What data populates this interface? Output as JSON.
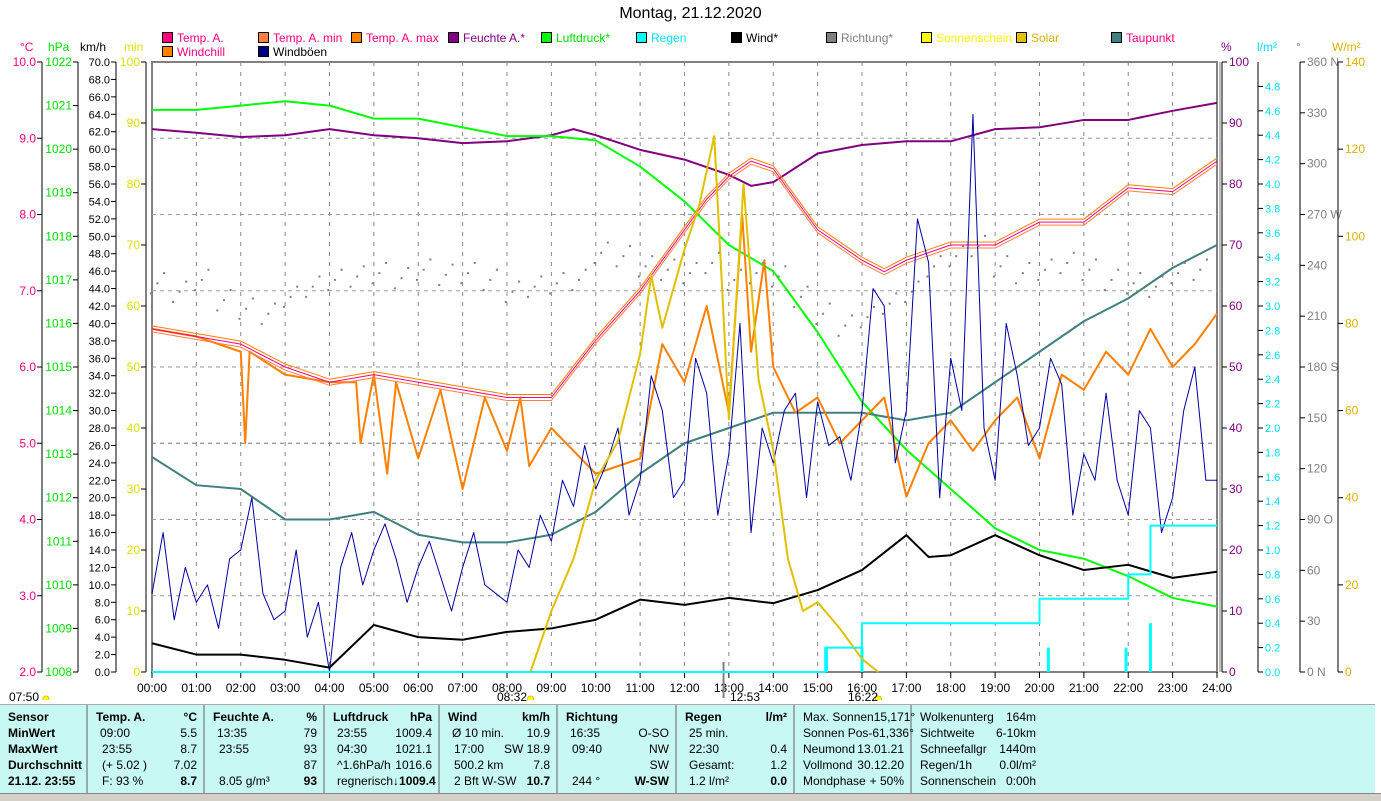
{
  "title": "Montag, 21.12.2020",
  "legend": [
    {
      "label": "Temp. A.",
      "color": "#ff0080",
      "text": "#ff0080"
    },
    {
      "label": "Temp. A. min",
      "color": "#ff8040",
      "text": "#ff0080"
    },
    {
      "label": "Temp. A. max",
      "color": "#ff8000",
      "text": "#ff0080"
    },
    {
      "label": "Feuchte A.*",
      "color": "#800080",
      "text": "#800080"
    },
    {
      "label": "Luftdruck*",
      "color": "#00ff00",
      "text": "#00e000"
    },
    {
      "label": "Regen",
      "color": "#00ffff",
      "text": "#00e0ff"
    },
    {
      "label": "Wind*",
      "color": "#000000",
      "text": "#000000"
    },
    {
      "label": "Richtung*",
      "color": "#808080",
      "text": "#808080"
    },
    {
      "label": "Sonnenschein",
      "color": "#ffff00",
      "text": "#ffff00"
    },
    {
      "label": "Solar",
      "color": "#e0c000",
      "text": "#e0b000"
    },
    {
      "label": "Taupunkt",
      "color": "#408080",
      "text": "#ff0080"
    },
    {
      "label": "Windchill",
      "color": "#ff8000",
      "text": "#ff0080"
    },
    {
      "label": "Windböen",
      "color": "#000080",
      "text": "#000000"
    }
  ],
  "units": {
    "c": "°C",
    "hpa": "hPa",
    "kmh": "km/h",
    "min": "min",
    "pct": "%",
    "lm2": "l/m²",
    "deg": "°",
    "wm2": "W/m²"
  },
  "time_marks": {
    "sunrise": "07:50",
    "sun_up": "08:32",
    "noon": "12:53",
    "sun_down": "16:22"
  },
  "chart_data": {
    "type": "line",
    "title": "Montag, 21.12.2020",
    "xlabel": "",
    "x_range": [
      0,
      24
    ],
    "x_ticks": [
      "00:00",
      "01:00",
      "02:00",
      "03:00",
      "04:00",
      "05:00",
      "06:00",
      "07:00",
      "08:00",
      "09:00",
      "10:00",
      "11:00",
      "12:00",
      "13:00",
      "14:00",
      "15:00",
      "16:00",
      "17:00",
      "18:00",
      "19:00",
      "20:00",
      "21:00",
      "22:00",
      "23:00",
      "24:00"
    ],
    "grid": true,
    "axes": {
      "c": {
        "range": [
          2,
          10
        ],
        "step": 1,
        "decimals": 1,
        "color": "#ff0080"
      },
      "hpa": {
        "range": [
          1008,
          1022
        ],
        "step": 1,
        "decimals": 0,
        "color": "#00e000"
      },
      "kmh": {
        "range": [
          0,
          70
        ],
        "step": 2,
        "decimals": 1,
        "color": "#000000"
      },
      "min": {
        "range": [
          0,
          100
        ],
        "step": 10,
        "decimals": 0,
        "color": "#e0e000"
      },
      "pct": {
        "range": [
          0,
          100
        ],
        "step": 10,
        "decimals": 0,
        "color": "#800080"
      },
      "lm2": {
        "range": [
          0,
          5
        ],
        "step": 0.2,
        "decimals": 1,
        "color": "#00e0ff",
        "max_label": 4.8
      },
      "deg": {
        "range": [
          0,
          360
        ],
        "step": 30,
        "decimals": 0,
        "color": "#808080",
        "compass": {
          "0": "N",
          "90": "O",
          "180": "S",
          "270": "W",
          "360": "N"
        }
      },
      "wm2": {
        "range": [
          0,
          140
        ],
        "step": 20,
        "decimals": 0,
        "color": "#e0b000"
      }
    },
    "series": [
      {
        "name": "Feuchte A.",
        "axis": "pct",
        "color": "#800080",
        "width": 2,
        "x": [
          0,
          1,
          2,
          3,
          4,
          5,
          6,
          7,
          8,
          9,
          9.5,
          10,
          11,
          12,
          13,
          13.5,
          14,
          15,
          16,
          17,
          18,
          19,
          20,
          21,
          22,
          23,
          24
        ],
        "y": [
          89,
          88.4,
          87.7,
          88,
          89,
          88,
          87.5,
          86.7,
          87,
          88,
          89,
          88,
          85.6,
          84,
          81.5,
          79.7,
          80.3,
          85,
          86.4,
          87,
          87,
          89,
          89.3,
          90.5,
          90.5,
          92,
          93.3
        ]
      },
      {
        "name": "Luftdruck",
        "axis": "hpa",
        "color": "#00ff00",
        "width": 2,
        "x": [
          0,
          1,
          2,
          3,
          4,
          5,
          6,
          7,
          8,
          9,
          10,
          11,
          12,
          13,
          14,
          15,
          16,
          17,
          18,
          19,
          20,
          21,
          22,
          23,
          24
        ],
        "y": [
          1020.9,
          1020.9,
          1021,
          1021.1,
          1021,
          1020.7,
          1020.7,
          1020.5,
          1020.3,
          1020.3,
          1020.2,
          1019.6,
          1018.8,
          1017.8,
          1017.2,
          1015.8,
          1014.2,
          1013.1,
          1012.2,
          1011.3,
          1010.8,
          1010.6,
          1010.2,
          1009.7,
          1009.5
        ]
      },
      {
        "name": "Taupunkt",
        "axis": "c",
        "color": "#408080",
        "width": 2,
        "x": [
          0,
          1,
          2,
          3,
          4,
          5,
          6,
          7,
          8,
          9,
          10,
          11,
          12,
          13,
          14,
          15,
          16,
          17,
          18,
          19,
          20,
          21,
          22,
          23,
          24
        ],
        "y": [
          4.82,
          4.45,
          4.4,
          4.0,
          4.0,
          4.1,
          3.8,
          3.7,
          3.7,
          3.8,
          4.1,
          4.6,
          5.0,
          5.2,
          5.4,
          5.4,
          5.4,
          5.3,
          5.4,
          5.8,
          6.2,
          6.6,
          6.9,
          7.3,
          7.6
        ]
      },
      {
        "name": "Windchill",
        "axis": "c",
        "color": "#ff8000",
        "width": 2,
        "x": [
          0,
          1,
          2,
          2.1,
          2.2,
          3,
          4,
          4.6,
          4.7,
          5,
          5.3,
          5.5,
          6,
          6.5,
          7,
          7.5,
          8,
          8.3,
          8.5,
          9,
          9.5,
          10,
          10.5,
          11,
          11.5,
          12,
          12.5,
          13,
          13.3,
          13.5,
          13.8,
          14,
          14.5,
          15,
          15.5,
          16,
          16.5,
          17,
          17.5,
          18,
          18.5,
          19,
          19.5,
          20,
          20.5,
          21,
          21.5,
          22,
          22.5,
          23,
          23.5,
          24
        ],
        "y": [
          6.5,
          6.4,
          6.2,
          5.0,
          6.2,
          5.9,
          5.8,
          5.8,
          5.0,
          5.9,
          4.6,
          5.8,
          4.8,
          5.7,
          4.4,
          5.6,
          4.9,
          5.6,
          4.7,
          5.2,
          4.9,
          4.6,
          4.7,
          4.8,
          6.3,
          5.8,
          6.8,
          5.4,
          8.0,
          6.2,
          7.4,
          6.0,
          5.4,
          5.6,
          5.0,
          5.3,
          5.6,
          4.3,
          5.0,
          5.3,
          4.9,
          5.3,
          5.6,
          4.8,
          5.9,
          5.7,
          6.2,
          5.9,
          6.5,
          6.0,
          6.3,
          6.7
        ]
      },
      {
        "name": "Temp. A. min",
        "axis": "c",
        "color": "#ff8040",
        "width": 1,
        "offset": -0.04,
        "x": [
          0,
          1,
          2,
          3,
          4,
          5,
          6,
          7,
          8,
          9,
          10,
          11,
          12,
          12.5,
          13,
          13.5,
          14,
          15,
          16,
          16.5,
          17,
          18,
          19,
          20,
          21,
          22,
          23,
          24
        ],
        "y": [
          6.5,
          6.4,
          6.3,
          6.0,
          5.8,
          5.9,
          5.8,
          5.7,
          5.6,
          5.6,
          6.35,
          7.0,
          7.8,
          8.2,
          8.5,
          8.7,
          8.6,
          7.8,
          7.4,
          7.25,
          7.4,
          7.6,
          7.6,
          7.9,
          7.9,
          8.35,
          8.3,
          8.7
        ]
      },
      {
        "name": "Temp. A. max",
        "axis": "c",
        "color": "#ff8000",
        "width": 1,
        "offset": 0.04,
        "x": [
          0,
          1,
          2,
          3,
          4,
          5,
          6,
          7,
          8,
          9,
          10,
          11,
          12,
          12.5,
          13,
          13.5,
          14,
          15,
          16,
          16.5,
          17,
          18,
          19,
          20,
          21,
          22,
          23,
          24
        ],
        "y": [
          6.5,
          6.4,
          6.3,
          6.0,
          5.8,
          5.9,
          5.8,
          5.7,
          5.6,
          5.6,
          6.35,
          7.0,
          7.8,
          8.2,
          8.5,
          8.7,
          8.6,
          7.8,
          7.4,
          7.25,
          7.4,
          7.6,
          7.6,
          7.9,
          7.9,
          8.35,
          8.3,
          8.7
        ]
      },
      {
        "name": "Temp. A.",
        "axis": "c",
        "color": "#ff0080",
        "width": 1,
        "x": [
          0,
          1,
          2,
          3,
          4,
          5,
          6,
          7,
          8,
          9,
          10,
          11,
          12,
          12.5,
          13,
          13.5,
          14,
          15,
          16,
          16.5,
          17,
          18,
          19,
          20,
          21,
          22,
          23,
          24
        ],
        "y": [
          6.5,
          6.4,
          6.3,
          6.0,
          5.8,
          5.9,
          5.8,
          5.7,
          5.6,
          5.6,
          6.35,
          7.0,
          7.8,
          8.2,
          8.5,
          8.7,
          8.6,
          7.8,
          7.4,
          7.25,
          7.4,
          7.6,
          7.6,
          7.9,
          7.9,
          8.35,
          8.3,
          8.7
        ]
      },
      {
        "name": "Windböen",
        "axis": "kmh",
        "color": "#0000a0",
        "width": 1,
        "x": [
          0,
          0.25,
          0.5,
          0.75,
          1,
          1.25,
          1.5,
          1.75,
          2,
          2.25,
          2.5,
          2.75,
          3,
          3.25,
          3.5,
          3.75,
          4,
          4.25,
          4.5,
          4.75,
          5,
          5.25,
          5.5,
          5.75,
          6,
          6.25,
          6.5,
          6.75,
          7,
          7.25,
          7.5,
          7.75,
          8,
          8.25,
          8.5,
          8.75,
          9,
          9.25,
          9.5,
          9.75,
          10,
          10.25,
          10.5,
          10.75,
          11,
          11.25,
          11.5,
          11.75,
          12,
          12.25,
          12.5,
          12.75,
          13,
          13.25,
          13.5,
          13.75,
          14,
          14.25,
          14.5,
          14.75,
          15,
          15.25,
          15.5,
          15.75,
          16,
          16.25,
          16.5,
          16.75,
          17,
          17.25,
          17.5,
          17.75,
          18,
          18.25,
          18.5,
          18.75,
          19,
          19.25,
          19.5,
          19.75,
          20,
          20.25,
          20.5,
          20.75,
          21,
          21.25,
          21.5,
          21.75,
          22,
          22.25,
          22.5,
          22.75,
          23,
          23.25,
          23.5,
          23.75,
          24
        ],
        "y": [
          9,
          16,
          6,
          12,
          8,
          10,
          5,
          13,
          14,
          20,
          9,
          6,
          7,
          14,
          4,
          8,
          0,
          12,
          16,
          10,
          14,
          17,
          13,
          8,
          12,
          15,
          11,
          7,
          12,
          16,
          10,
          9,
          8,
          14,
          12,
          18,
          15,
          22,
          19,
          26,
          21,
          24,
          28,
          18,
          22,
          34,
          30,
          20,
          22,
          36,
          32,
          18,
          25,
          40,
          16,
          28,
          24,
          30,
          32,
          20,
          31,
          26,
          27,
          22,
          30,
          44,
          42,
          24,
          30,
          52,
          47,
          20,
          36,
          30,
          64,
          28,
          22,
          40,
          34,
          26,
          28,
          36,
          33,
          18,
          25,
          22,
          32,
          22,
          18,
          30,
          28,
          16,
          20,
          30,
          35,
          22,
          22
        ]
      },
      {
        "name": "Wind",
        "axis": "kmh",
        "color": "#000000",
        "width": 2,
        "x": [
          0,
          1,
          2,
          3,
          4,
          5,
          6,
          7,
          8,
          9,
          10,
          11,
          12,
          13,
          14,
          15,
          16,
          17,
          17.5,
          18,
          19,
          20,
          21,
          22,
          23,
          24
        ],
        "y": [
          3.3,
          2,
          2,
          1.4,
          0.5,
          5.4,
          4,
          3.7,
          4.6,
          5,
          6,
          8.3,
          7.7,
          8.5,
          7.9,
          9.4,
          11.7,
          15.7,
          13.2,
          13.4,
          15.7,
          13.4,
          11.7,
          12.3,
          10.8,
          11.5
        ]
      },
      {
        "name": "Solar",
        "axis": "wm2",
        "color": "#e0c000",
        "width": 2,
        "x": [
          8.53,
          9,
          9.5,
          10,
          10.5,
          11,
          11.25,
          11.5,
          12,
          12.33,
          12.67,
          13,
          13.33,
          13.67,
          14,
          14.33,
          14.67,
          15,
          15.5,
          16,
          16.37
        ],
        "y": [
          0,
          14,
          26,
          44,
          53,
          73,
          91,
          79,
          97,
          107,
          123,
          58,
          112,
          67,
          51,
          26,
          14,
          16,
          10,
          3,
          0
        ]
      },
      {
        "name": "Regen",
        "axis": "lm2",
        "color": "#00ffff",
        "width": 2,
        "step": true,
        "x": [
          0,
          15.17,
          16,
          20,
          22,
          22.5,
          24
        ],
        "y": [
          0,
          0.2,
          0.4,
          0.6,
          0.8,
          1.2,
          1.2
        ]
      },
      {
        "name": "Richtung",
        "axis": "deg",
        "color": "#808080",
        "type": "scatter",
        "x": [
          0,
          0.5,
          1,
          1.5,
          2,
          2.5,
          3,
          3.5,
          4,
          4.5,
          5,
          5.5,
          6,
          6.5,
          7,
          7.5,
          8,
          8.5,
          9,
          9.5,
          10,
          10.5,
          11,
          11.5,
          12,
          12.5,
          13,
          13.5,
          14,
          14.5,
          15,
          15.5,
          16,
          16.5,
          17,
          17.5,
          18,
          18.5,
          19,
          19.5,
          20,
          20.5,
          21,
          21.5,
          22,
          22.5,
          23,
          23.5
        ],
        "y": [
          230,
          225,
          232,
          220,
          215,
          212,
          222,
          228,
          232,
          234,
          236,
          233,
          238,
          235,
          236,
          232,
          225,
          228,
          230,
          232,
          248,
          246,
          240,
          238,
          236,
          242,
          232,
          236,
          234,
          222,
          212,
          205,
          210,
          218,
          225,
          240,
          246,
          252,
          240,
          236,
          238,
          242,
          238,
          232,
          230,
          228,
          236,
          238
        ]
      }
    ],
    "rain_bars": {
      "axis": "lm2",
      "x": [
        15.2,
        16.0,
        20.2,
        21.95,
        22.5
      ],
      "y": [
        0.2,
        0.2,
        0.2,
        0.2,
        0.4
      ]
    }
  },
  "table": {
    "sensor": {
      "h": "Sensor",
      "r1": "MinWert",
      "r2": "MaxWert",
      "r3": "Durchschnitt",
      "r4": "21.12. 23:55"
    },
    "temp": {
      "h": "Temp. A.",
      "u": "°C",
      "r1a": "09:00",
      "r1b": "5.5",
      "r2a": "23:55",
      "r2b": "8.7",
      "r3a": "(+ 5.02 )",
      "r3b": "7.02",
      "r4a": "F: 93 %",
      "r4b": "8.7"
    },
    "feuchte": {
      "h": "Feuchte A.",
      "u": "%",
      "r1a": "13:35",
      "r1b": "79",
      "r2a": "23:55",
      "r2b": "93",
      "r3a": "",
      "r3b": "87",
      "r4a": "8.05 g/m³",
      "r4b": "93"
    },
    "druck": {
      "h": "Luftdruck",
      "u": "hPa",
      "r1a": "23:55",
      "r1b": "1009.4",
      "r2a": "04:30",
      "r2b": "1021.1",
      "r3a": "^1.6hPa/h",
      "r3b": "1016.6",
      "r4a": "regnerisch",
      "r4b": "↓1009.4"
    },
    "wind": {
      "h": "Wind",
      "u": "km/h",
      "r1a": "Ø 10 min.",
      "r1b": "10.9",
      "r2a": "17:00",
      "r2b": "SW 18.9",
      "r3a": "500.2 km",
      "r3b": "7.8",
      "r4a": "2 Bft W-SW",
      "r4b": "10.7"
    },
    "richtung": {
      "h": "Richtung",
      "u": "",
      "r1a": "16:35",
      "r1b": "O-SO",
      "r2a": "09:40",
      "r2b": "NW",
      "r3a": "",
      "r3b": "SW",
      "r4a": "244 °",
      "r4b": "W-SW"
    },
    "regen": {
      "h": "Regen",
      "u": "l/m²",
      "r1a": "25 min.",
      "r1b": "",
      "r2a": "22:30",
      "r2b": "0.4",
      "r3a": "Gesamt:",
      "r3b": "1.2",
      "r4a": "1.2 l/m²",
      "r4b": "0.0"
    },
    "astro": {
      "r0a": "Max. Sonnen",
      "r0b": "15,171°",
      "r1a": "Sonnen Pos",
      "r1b": "-61,336°",
      "r2a": "Neumond",
      "r2b": "13.01.21",
      "r3a": "Vollmond",
      "r3b": "30.12.20",
      "r4a": "Mondphase",
      "r4b": "+ 50%"
    },
    "extra": {
      "r0a": "Wolkenunterg",
      "r0b": "164m",
      "r1a": "Sichtweite",
      "r1b": "6-10km",
      "r2a": "Schneefallgr",
      "r2b": "1440m",
      "r3a": "Regen/1h",
      "r3b": "0.0l/m²",
      "r4a": "Sonnenschein",
      "r4b": "0:00h"
    }
  }
}
